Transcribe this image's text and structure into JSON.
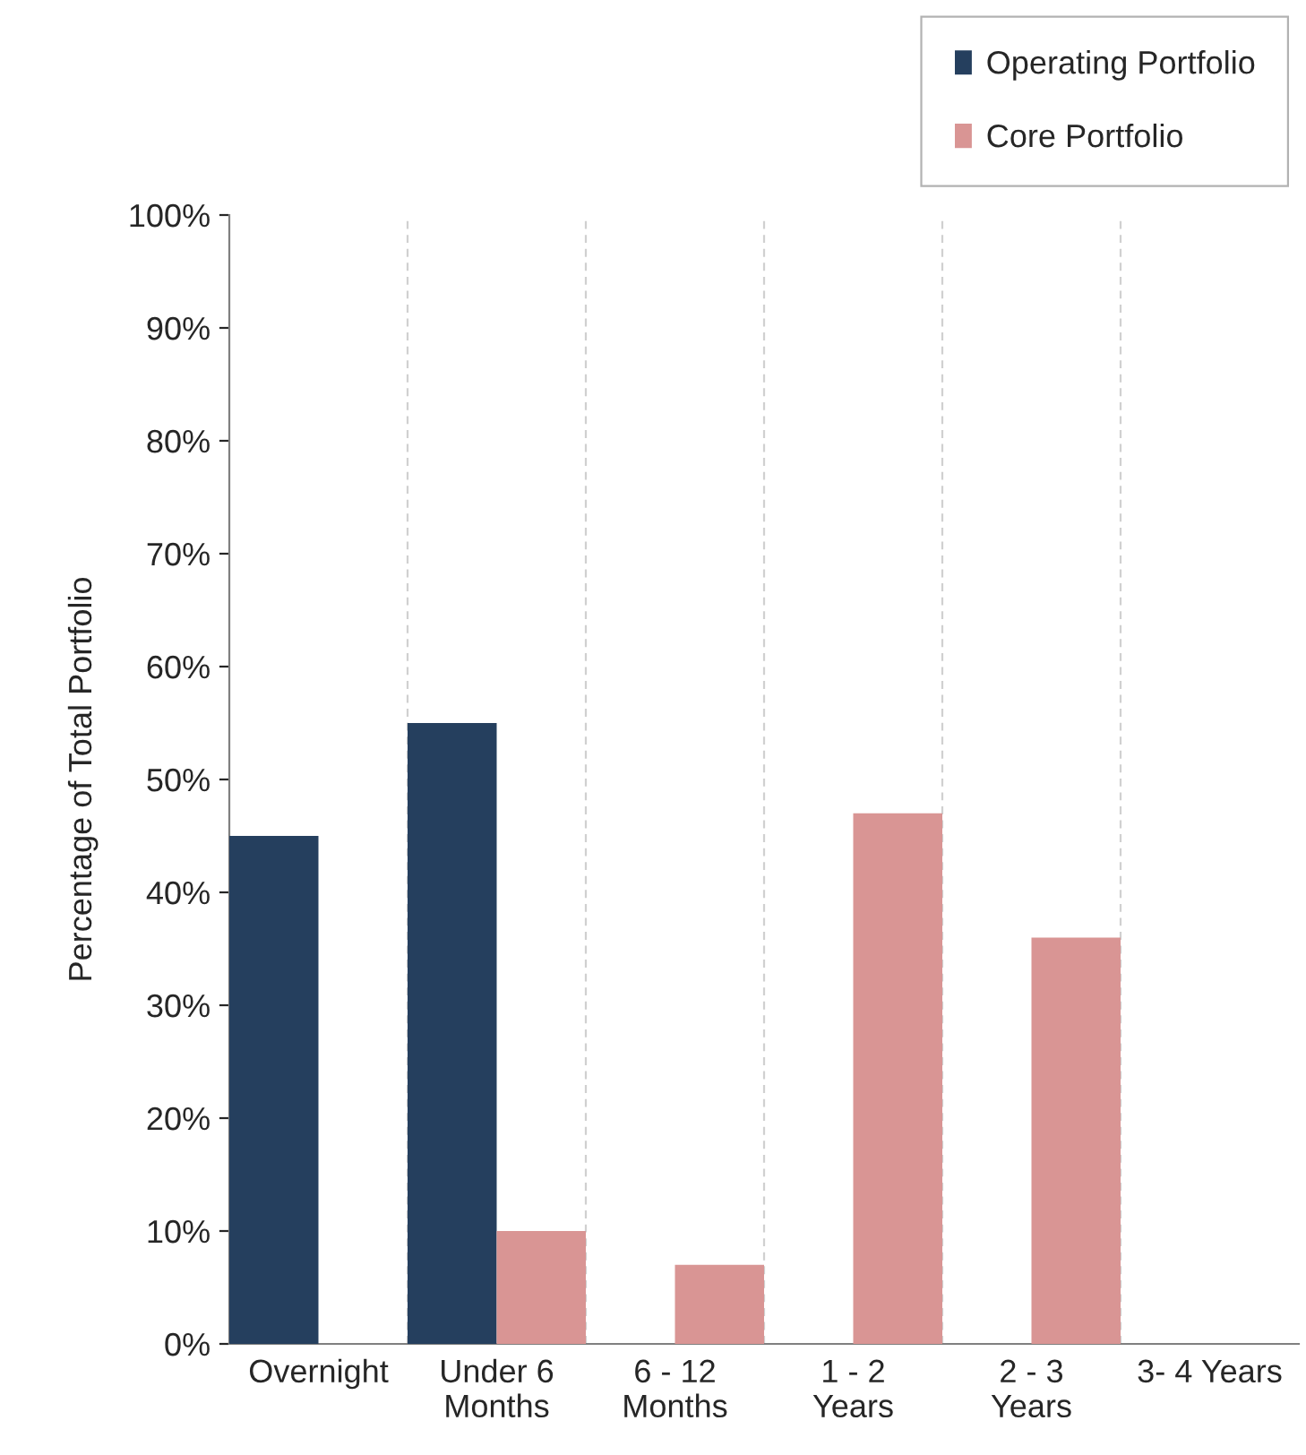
{
  "chart_data": {
    "type": "bar",
    "ylabel": "Percentage of Total Portfolio",
    "categories": [
      "Overnight",
      "Under 6\nMonths",
      "6 - 12\nMonths",
      "1 - 2\nYears",
      "2 - 3\nYears",
      "3- 4 Years"
    ],
    "series": [
      {
        "name": "Operating Portfolio",
        "color": "#253f5e",
        "values": [
          45,
          55,
          null,
          null,
          null,
          null
        ]
      },
      {
        "name": "Core Portfolio",
        "color": "#d99594",
        "values": [
          null,
          10,
          7,
          47,
          36,
          null
        ]
      }
    ],
    "ylim": [
      0,
      100
    ],
    "yticks": [
      {
        "value": 0,
        "label": "0%"
      },
      {
        "value": 10,
        "label": "10%"
      },
      {
        "value": 20,
        "label": "20%"
      },
      {
        "value": 30,
        "label": "30%"
      },
      {
        "value": 40,
        "label": "40%"
      },
      {
        "value": 50,
        "label": "50%"
      },
      {
        "value": 60,
        "label": "60%"
      },
      {
        "value": 70,
        "label": "70%"
      },
      {
        "value": 80,
        "label": "80%"
      },
      {
        "value": 90,
        "label": "90%"
      },
      {
        "value": 100,
        "label": "100%"
      }
    ],
    "grid": "x",
    "legend": "top right"
  }
}
